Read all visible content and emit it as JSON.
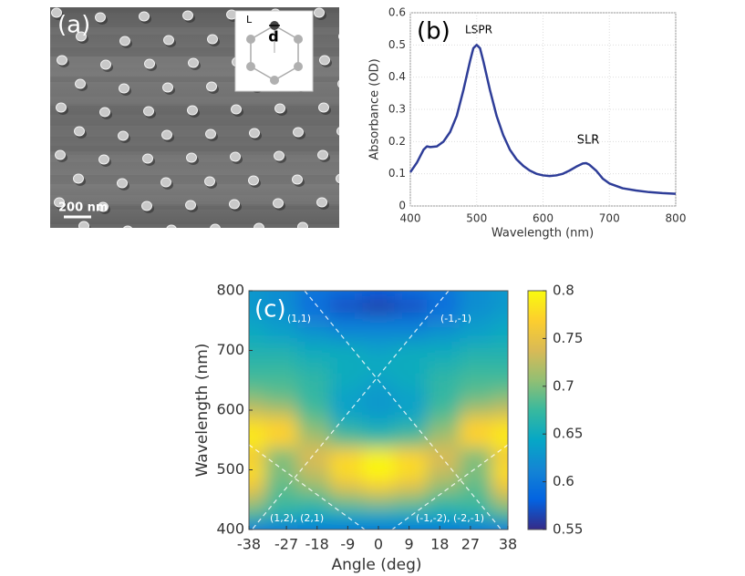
{
  "image_panel": {
    "label": "(a)",
    "scale_bar": "200 nm",
    "inset_labels": [
      "L",
      "d"
    ]
  },
  "chart_data": [
    {
      "type": "line",
      "label": "(b)",
      "xlabel": "Wavelength (nm)",
      "ylabel": "Absorbance (OD)",
      "x": [
        400,
        410,
        420,
        425,
        430,
        440,
        450,
        460,
        470,
        480,
        490,
        495,
        500,
        505,
        510,
        520,
        530,
        540,
        550,
        560,
        570,
        580,
        590,
        600,
        610,
        620,
        630,
        640,
        650,
        660,
        665,
        670,
        680,
        690,
        700,
        720,
        740,
        760,
        780,
        800
      ],
      "values": [
        0.105,
        0.135,
        0.175,
        0.185,
        0.183,
        0.185,
        0.2,
        0.23,
        0.28,
        0.36,
        0.45,
        0.49,
        0.5,
        0.49,
        0.45,
        0.36,
        0.28,
        0.22,
        0.175,
        0.145,
        0.125,
        0.11,
        0.1,
        0.095,
        0.093,
        0.095,
        0.1,
        0.11,
        0.122,
        0.132,
        0.133,
        0.128,
        0.11,
        0.085,
        0.07,
        0.055,
        0.048,
        0.043,
        0.04,
        0.038
      ],
      "color": "#2e3d98",
      "xlim": [
        400,
        800
      ],
      "ylim": [
        0,
        0.6
      ],
      "xticks": [
        400,
        500,
        600,
        700,
        800
      ],
      "yticks": [
        0,
        0.1,
        0.2,
        0.3,
        0.4,
        0.5,
        0.6
      ],
      "grid": true,
      "annotations": [
        "LSPR",
        "SLR"
      ]
    },
    {
      "type": "heatmap",
      "label": "(c)",
      "xlabel": "Angle (deg)",
      "ylabel": "Wavelength (nm)",
      "x": [
        -38,
        -28.5,
        -19,
        -9.5,
        0,
        9.5,
        19,
        28.5,
        38
      ],
      "y": [
        400,
        425,
        450,
        475,
        500,
        525,
        550,
        575,
        600,
        625,
        650,
        675,
        700,
        725,
        750,
        775,
        800
      ],
      "values": [
        [
          0.6,
          0.6,
          0.6,
          0.6,
          0.6,
          0.6,
          0.6,
          0.6,
          0.6
        ],
        [
          0.68,
          0.66,
          0.65,
          0.65,
          0.65,
          0.65,
          0.65,
          0.66,
          0.68
        ],
        [
          0.72,
          0.68,
          0.68,
          0.7,
          0.71,
          0.7,
          0.68,
          0.68,
          0.72
        ],
        [
          0.76,
          0.69,
          0.71,
          0.75,
          0.77,
          0.75,
          0.71,
          0.69,
          0.76
        ],
        [
          0.78,
          0.7,
          0.73,
          0.78,
          0.8,
          0.78,
          0.73,
          0.7,
          0.78
        ],
        [
          0.76,
          0.7,
          0.74,
          0.77,
          0.79,
          0.77,
          0.74,
          0.7,
          0.76
        ],
        [
          0.79,
          0.77,
          0.72,
          0.69,
          0.68,
          0.69,
          0.72,
          0.77,
          0.79
        ],
        [
          0.78,
          0.77,
          0.7,
          0.66,
          0.65,
          0.66,
          0.7,
          0.77,
          0.78
        ],
        [
          0.73,
          0.72,
          0.68,
          0.64,
          0.63,
          0.64,
          0.68,
          0.72,
          0.73
        ],
        [
          0.7,
          0.69,
          0.67,
          0.64,
          0.63,
          0.64,
          0.67,
          0.69,
          0.7
        ],
        [
          0.68,
          0.68,
          0.67,
          0.65,
          0.64,
          0.65,
          0.67,
          0.68,
          0.68
        ],
        [
          0.67,
          0.67,
          0.66,
          0.65,
          0.65,
          0.65,
          0.66,
          0.67,
          0.67
        ],
        [
          0.66,
          0.66,
          0.65,
          0.65,
          0.64,
          0.65,
          0.65,
          0.66,
          0.66
        ],
        [
          0.65,
          0.64,
          0.63,
          0.62,
          0.62,
          0.62,
          0.63,
          0.64,
          0.65
        ],
        [
          0.64,
          0.63,
          0.61,
          0.6,
          0.6,
          0.6,
          0.61,
          0.63,
          0.64
        ],
        [
          0.63,
          0.62,
          0.59,
          0.57,
          0.56,
          0.57,
          0.59,
          0.62,
          0.63
        ],
        [
          0.63,
          0.62,
          0.6,
          0.59,
          0.58,
          0.59,
          0.6,
          0.62,
          0.63
        ]
      ],
      "xlim": [
        -38,
        38
      ],
      "ylim": [
        400,
        800
      ],
      "xticks": [
        -38,
        -27,
        -18,
        -9,
        0,
        9,
        18,
        27,
        38
      ],
      "yticks": [
        400,
        500,
        600,
        700,
        800
      ],
      "colorbar": {
        "lim": [
          0.55,
          0.8
        ],
        "ticks": [
          0.55,
          0.6,
          0.65,
          0.7,
          0.75,
          0.8
        ]
      },
      "annotations": [
        "(1,1)",
        "(-1,-1)",
        "(1,2), (2,1)",
        "(-1,-2), (-2,-1)"
      ]
    }
  ]
}
